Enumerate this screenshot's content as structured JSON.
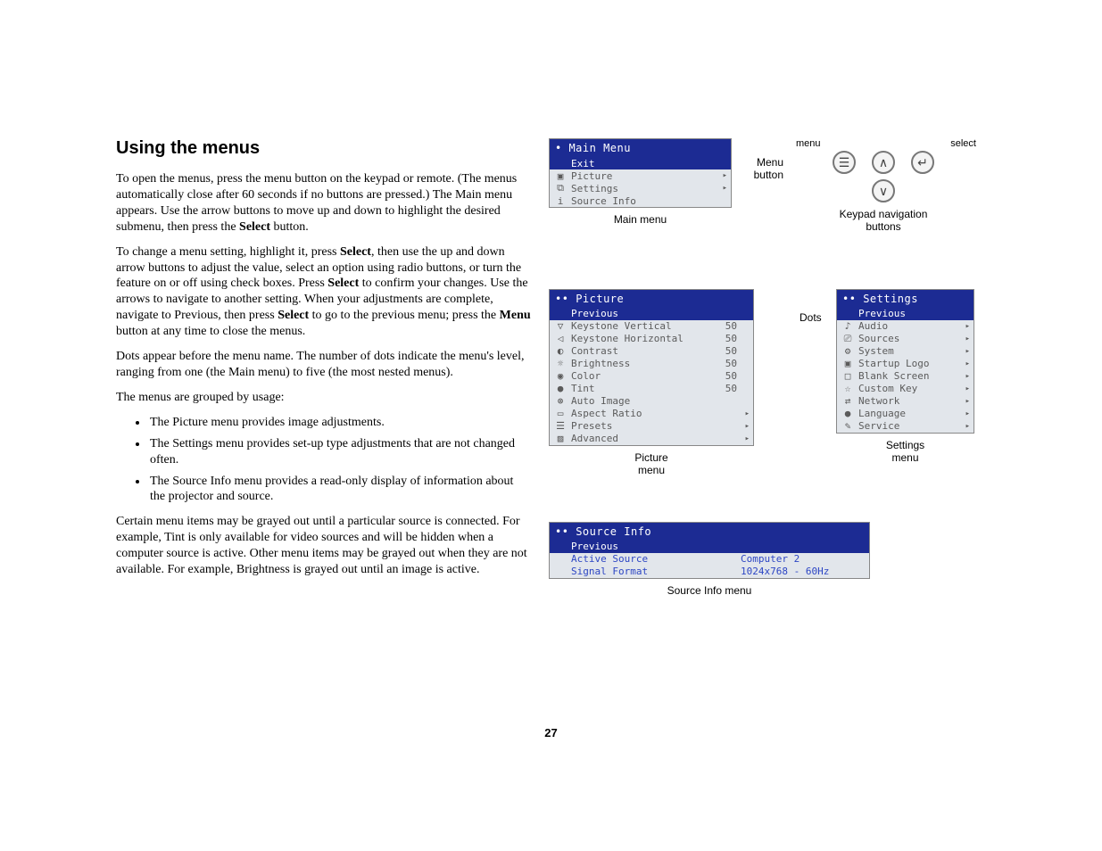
{
  "heading": "Using the menus",
  "body": {
    "p1a": "To open the menus, press the menu button on the keypad or remote. (The menus automatically close after 60 seconds if no buttons are pressed.) The Main menu appears. Use the arrow buttons to move up and down to highlight the desired submenu, then press the ",
    "p1b": "Select",
    "p1c": " button.",
    "p2a": "To change a menu setting, highlight it, press ",
    "p2b": "Select",
    "p2c": ", then use the up and down arrow buttons to adjust the value, select an option using radio buttons, or turn the feature on or off using check boxes. Press ",
    "p2d": "Select",
    "p2e": " to confirm your changes. Use the arrows to navigate to another setting. When your adjustments are complete, navigate to Previous, then press ",
    "p2f": "Select",
    "p2g": " to go to the previous menu; press the ",
    "p2h": "Menu",
    "p2i": " button at any time to close the menus.",
    "p3": "Dots appear before the menu name. The number of dots indicate the menu's level, ranging from one (the Main menu) to five (the most nested menus).",
    "p4": "The menus are grouped by usage:",
    "li1": "The Picture menu provides image adjustments.",
    "li2": "The Settings menu provides set-up type adjustments that are not changed often.",
    "li3": "The Source Info menu provides a read-only display of information about the projector and source.",
    "p5": "Certain menu items may be grayed out until a particular source is connected. For example, Tint is only available for video sources and will be hidden when a computer source is active. Other menu items may be grayed out when they are not available. For example, Brightness is grayed out until an image is active."
  },
  "main_menu": {
    "title": "Main Menu",
    "items": [
      {
        "icon": "",
        "label": "Exit",
        "arrow": "",
        "sel": true
      },
      {
        "icon": "▣",
        "label": "Picture",
        "arrow": "▸",
        "sel": false
      },
      {
        "icon": "⧉",
        "label": "Settings",
        "arrow": "▸",
        "sel": false
      },
      {
        "icon": "i",
        "label": "Source Info",
        "arrow": "",
        "sel": false
      }
    ],
    "caption": "Main menu"
  },
  "keypad": {
    "label_menu_btn": "Menu\nbutton",
    "label_menu": "menu",
    "label_select": "select",
    "caption": "Keypad navigation\nbuttons",
    "btn_menu": "☰",
    "btn_up": "∧",
    "btn_down": "∨",
    "btn_select": "↵"
  },
  "picture_menu": {
    "title": "Picture",
    "items": [
      {
        "icon": "",
        "label": "Previous",
        "val": "",
        "arrow": "",
        "sel": true
      },
      {
        "icon": "▽",
        "label": "Keystone Vertical",
        "val": "50",
        "arrow": "",
        "sel": false
      },
      {
        "icon": "◁",
        "label": "Keystone Horizontal",
        "val": "50",
        "arrow": "",
        "sel": false
      },
      {
        "icon": "◐",
        "label": "Contrast",
        "val": "50",
        "arrow": "",
        "sel": false
      },
      {
        "icon": "☼",
        "label": "Brightness",
        "val": "50",
        "arrow": "",
        "sel": false
      },
      {
        "icon": "◉",
        "label": "Color",
        "val": "50",
        "arrow": "",
        "sel": false
      },
      {
        "icon": "●",
        "label": "Tint",
        "val": "50",
        "arrow": "",
        "sel": false
      },
      {
        "icon": "⊛",
        "label": "Auto Image",
        "val": "",
        "arrow": "",
        "sel": false
      },
      {
        "icon": "▭",
        "label": "Aspect Ratio",
        "val": "",
        "arrow": "▸",
        "sel": false
      },
      {
        "icon": "☰",
        "label": "Presets",
        "val": "",
        "arrow": "▸",
        "sel": false
      },
      {
        "icon": "▨",
        "label": "Advanced",
        "val": "",
        "arrow": "▸",
        "sel": false
      }
    ],
    "caption": "Picture\nmenu"
  },
  "settings_menu": {
    "title": "Settings",
    "items": [
      {
        "icon": "",
        "label": "Previous",
        "arrow": "",
        "sel": true
      },
      {
        "icon": "♪",
        "label": "Audio",
        "arrow": "▸",
        "sel": false
      },
      {
        "icon": "⎚",
        "label": "Sources",
        "arrow": "▸",
        "sel": false
      },
      {
        "icon": "⚙",
        "label": "System",
        "arrow": "▸",
        "sel": false
      },
      {
        "icon": "▣",
        "label": "Startup Logo",
        "arrow": "▸",
        "sel": false
      },
      {
        "icon": "□",
        "label": "Blank Screen",
        "arrow": "▸",
        "sel": false
      },
      {
        "icon": "☆",
        "label": "Custom Key",
        "arrow": "▸",
        "sel": false
      },
      {
        "icon": "⇄",
        "label": "Network",
        "arrow": "▸",
        "sel": false
      },
      {
        "icon": "●",
        "label": "Language",
        "arrow": "▸",
        "sel": false
      },
      {
        "icon": "✎",
        "label": "Service",
        "arrow": "▸",
        "sel": false
      }
    ],
    "caption": "Settings\nmenu"
  },
  "dots_label": "Dots",
  "source_info": {
    "title": "Source Info",
    "prev": "Previous",
    "rows": [
      {
        "k": "Active Source",
        "v": "Computer 2"
      },
      {
        "k": "Signal Format",
        "v": "1024x768 - 60Hz"
      }
    ],
    "caption": "Source Info menu"
  },
  "page_number": "27"
}
